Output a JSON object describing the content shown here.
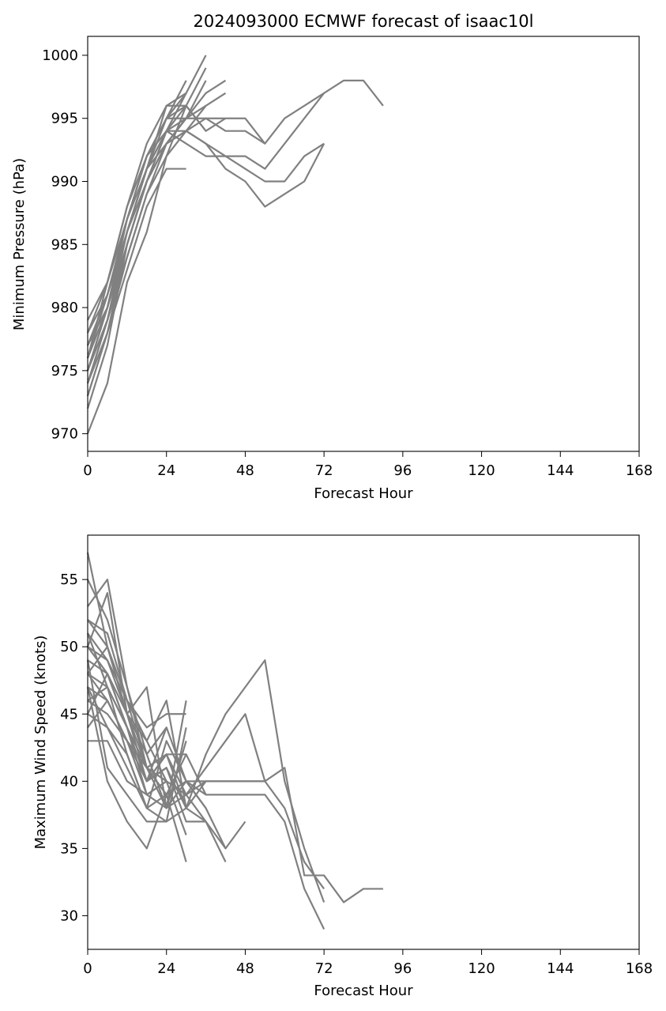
{
  "chart_data": [
    {
      "type": "line",
      "title": "2024093000 ECMWF forecast of isaac10l",
      "xlabel": "Forecast Hour",
      "ylabel": "Minimum Pressure (hPa)",
      "xlim": [
        0,
        168
      ],
      "ylim": [
        968.6,
        1001.5
      ],
      "xticks": [
        0,
        24,
        48,
        72,
        96,
        120,
        144,
        168
      ],
      "yticks": [
        970,
        975,
        980,
        985,
        990,
        995,
        1000
      ],
      "grid": false,
      "line_color": "#808080",
      "series": [
        {
          "x": [
            0,
            6,
            12,
            18,
            24,
            30,
            36,
            42
          ],
          "y": [
            976,
            982,
            988,
            993,
            996,
            996,
            994,
            995
          ]
        },
        {
          "x": [
            0,
            6,
            12,
            18,
            24,
            30,
            36,
            42,
            48,
            54,
            60,
            66,
            72,
            78,
            84,
            90
          ],
          "y": [
            975,
            980,
            987,
            992,
            995,
            995,
            995,
            995,
            995,
            993,
            995,
            996,
            997,
            998,
            998,
            996
          ]
        },
        {
          "x": [
            0,
            6,
            12,
            18,
            24,
            30,
            36,
            42,
            48,
            54,
            60,
            66,
            72
          ],
          "y": [
            974,
            979,
            986,
            991,
            994,
            994,
            993,
            992,
            992,
            991,
            993,
            995,
            997
          ]
        },
        {
          "x": [
            0,
            6,
            12,
            18,
            24,
            30,
            36,
            42,
            48,
            54,
            60,
            66,
            72
          ],
          "y": [
            973,
            978,
            985,
            990,
            993,
            994,
            993,
            991,
            990,
            988,
            989,
            990,
            993
          ]
        },
        {
          "x": [
            0,
            6,
            12,
            18,
            24,
            30,
            36,
            42,
            48,
            54,
            60,
            66,
            72
          ],
          "y": [
            972,
            977,
            985,
            990,
            994,
            993,
            992,
            992,
            991,
            990,
            990,
            992,
            993
          ]
        },
        {
          "x": [
            0,
            6,
            12,
            18,
            24,
            30,
            36,
            42,
            48,
            54
          ],
          "y": [
            970,
            974,
            982,
            986,
            992,
            994,
            995,
            994,
            994,
            993
          ]
        },
        {
          "x": [
            0,
            6,
            12,
            18,
            24,
            30
          ],
          "y": [
            977,
            981,
            987,
            992,
            995,
            998
          ]
        },
        {
          "x": [
            0,
            6,
            12,
            18,
            24,
            30
          ],
          "y": [
            978,
            982,
            988,
            992,
            994,
            997
          ]
        },
        {
          "x": [
            0,
            6,
            12,
            18,
            24,
            30,
            36
          ],
          "y": [
            979,
            982,
            987,
            991,
            995,
            997,
            1000
          ]
        },
        {
          "x": [
            0,
            6,
            12,
            18,
            24,
            30,
            36
          ],
          "y": [
            975,
            980,
            986,
            991,
            994,
            996,
            999
          ]
        },
        {
          "x": [
            0,
            6,
            12,
            18,
            24,
            30,
            36
          ],
          "y": [
            974,
            979,
            985,
            990,
            993,
            995,
            998
          ]
        },
        {
          "x": [
            0,
            6,
            12,
            18,
            24,
            30,
            36,
            42
          ],
          "y": [
            976,
            980,
            986,
            991,
            993,
            995,
            997,
            998
          ]
        },
        {
          "x": [
            0,
            6,
            12,
            18,
            24,
            30,
            36,
            42
          ],
          "y": [
            975,
            979,
            985,
            990,
            993,
            994,
            996,
            997
          ]
        },
        {
          "x": [
            0,
            6,
            12,
            18,
            24,
            30
          ],
          "y": [
            973,
            978,
            984,
            989,
            992,
            996
          ]
        },
        {
          "x": [
            0,
            6,
            12,
            18,
            24,
            30
          ],
          "y": [
            977,
            980,
            986,
            990,
            994,
            995
          ]
        },
        {
          "x": [
            0,
            6,
            12,
            18,
            24,
            30
          ],
          "y": [
            974,
            978,
            983,
            988,
            991,
            991
          ]
        },
        {
          "x": [
            0,
            6,
            12,
            18,
            24,
            30,
            36
          ],
          "y": [
            976,
            981,
            987,
            992,
            995,
            996,
            994
          ]
        },
        {
          "x": [
            0,
            6,
            12,
            18,
            24,
            30,
            36
          ],
          "y": [
            975,
            979,
            984,
            989,
            993,
            995,
            996
          ]
        },
        {
          "x": [
            0,
            6,
            12,
            18,
            24,
            30
          ],
          "y": [
            978,
            981,
            986,
            991,
            996,
            997
          ]
        },
        {
          "x": [
            0,
            6,
            12,
            18,
            24
          ],
          "y": [
            976,
            980,
            985,
            990,
            994
          ]
        }
      ]
    },
    {
      "type": "line",
      "title": "",
      "xlabel": "Forecast Hour",
      "ylabel": "Maximum Wind Speed (knots)",
      "xlim": [
        0,
        168
      ],
      "ylim": [
        27.5,
        58.3
      ],
      "xticks": [
        0,
        24,
        48,
        72,
        96,
        120,
        144,
        168
      ],
      "yticks": [
        30,
        35,
        40,
        45,
        50,
        55
      ],
      "grid": false,
      "line_color": "#808080",
      "series": [
        {
          "x": [
            0,
            6,
            12,
            18,
            24,
            30,
            36,
            42,
            48,
            54,
            60,
            66,
            72,
            78,
            84,
            90
          ],
          "y": [
            48,
            50,
            46,
            41,
            39,
            40,
            40,
            40,
            40,
            40,
            41,
            33,
            33,
            31,
            32,
            32
          ]
        },
        {
          "x": [
            0,
            6,
            12,
            18,
            24,
            30,
            36,
            42,
            48,
            54,
            60,
            66,
            72
          ],
          "y": [
            46,
            45,
            43,
            39,
            38,
            40,
            39,
            39,
            39,
            39,
            37,
            32,
            29
          ]
        },
        {
          "x": [
            0,
            6,
            12,
            18,
            24,
            30,
            36,
            42,
            48,
            54,
            60,
            66,
            72
          ],
          "y": [
            50,
            48,
            44,
            40,
            41,
            38,
            42,
            45,
            47,
            49,
            40,
            35,
            31
          ]
        },
        {
          "x": [
            0,
            6,
            12,
            18,
            24,
            30,
            36,
            42,
            48,
            54,
            60,
            66,
            72
          ],
          "y": [
            47,
            46,
            43,
            41,
            38,
            39,
            41,
            43,
            45,
            40,
            38,
            34,
            32
          ]
        },
        {
          "x": [
            0,
            6,
            12,
            18,
            24,
            30,
            36,
            42,
            48,
            54
          ],
          "y": [
            45,
            44,
            41,
            38,
            37,
            38,
            40,
            40,
            40,
            40
          ]
        },
        {
          "x": [
            0,
            6,
            12,
            18,
            24,
            30,
            36,
            42,
            48
          ],
          "y": [
            52,
            50,
            45,
            40,
            42,
            38,
            37,
            35,
            37
          ]
        },
        {
          "x": [
            0,
            6,
            12,
            18,
            24,
            30,
            36,
            42
          ],
          "y": [
            49,
            48,
            44,
            39,
            40,
            39,
            37,
            34
          ]
        },
        {
          "x": [
            0,
            6,
            12,
            18,
            24,
            30,
            36,
            42
          ],
          "y": [
            51,
            47,
            42,
            38,
            43,
            40,
            38,
            35
          ]
        },
        {
          "x": [
            0,
            6,
            12,
            18,
            24,
            30,
            36
          ],
          "y": [
            53,
            55,
            47,
            42,
            44,
            40,
            38
          ]
        },
        {
          "x": [
            0,
            6,
            12,
            18,
            24,
            30,
            36
          ],
          "y": [
            48,
            46,
            43,
            40,
            41,
            37,
            37
          ]
        },
        {
          "x": [
            0,
            6,
            12,
            18,
            24,
            30,
            36
          ],
          "y": [
            50,
            49,
            45,
            41,
            39,
            42,
            39
          ]
        },
        {
          "x": [
            0,
            6,
            12,
            18,
            24,
            30,
            36
          ],
          "y": [
            46,
            47,
            44,
            40,
            42,
            39,
            40
          ]
        },
        {
          "x": [
            0,
            6,
            12,
            18,
            24,
            30
          ],
          "y": [
            57,
            50,
            45,
            43,
            46,
            38
          ]
        },
        {
          "x": [
            0,
            6,
            12,
            18,
            24,
            30
          ],
          "y": [
            43,
            43,
            40,
            39,
            40,
            36
          ]
        },
        {
          "x": [
            0,
            6,
            12,
            18,
            24,
            30
          ],
          "y": [
            47,
            40,
            37,
            35,
            39,
            34
          ]
        },
        {
          "x": [
            0,
            6,
            12,
            18,
            24,
            30
          ],
          "y": [
            49,
            41,
            39,
            37,
            37,
            44
          ]
        },
        {
          "x": [
            0,
            6,
            12,
            18,
            24,
            30
          ],
          "y": [
            52,
            51,
            46,
            44,
            45,
            45
          ]
        },
        {
          "x": [
            0,
            6,
            12,
            18,
            24,
            30
          ],
          "y": [
            45,
            48,
            45,
            42,
            38,
            43
          ]
        },
        {
          "x": [
            0,
            6,
            12,
            18,
            24,
            30
          ],
          "y": [
            50,
            54,
            45,
            47,
            38,
            46
          ]
        },
        {
          "x": [
            0,
            6,
            12,
            18,
            24,
            30
          ],
          "y": [
            48,
            47,
            44,
            41,
            42,
            42
          ]
        },
        {
          "x": [
            0,
            6,
            12,
            18,
            24
          ],
          "y": [
            51,
            49,
            46,
            43,
            40
          ]
        },
        {
          "x": [
            0,
            6,
            12,
            18,
            24
          ],
          "y": [
            47,
            44,
            42,
            38,
            39
          ]
        },
        {
          "x": [
            0,
            6,
            12,
            18,
            24
          ],
          "y": [
            55,
            52,
            47,
            41,
            40
          ]
        },
        {
          "x": [
            0,
            6,
            12,
            18,
            24
          ],
          "y": [
            44,
            46,
            43,
            40,
            44
          ]
        }
      ]
    }
  ]
}
